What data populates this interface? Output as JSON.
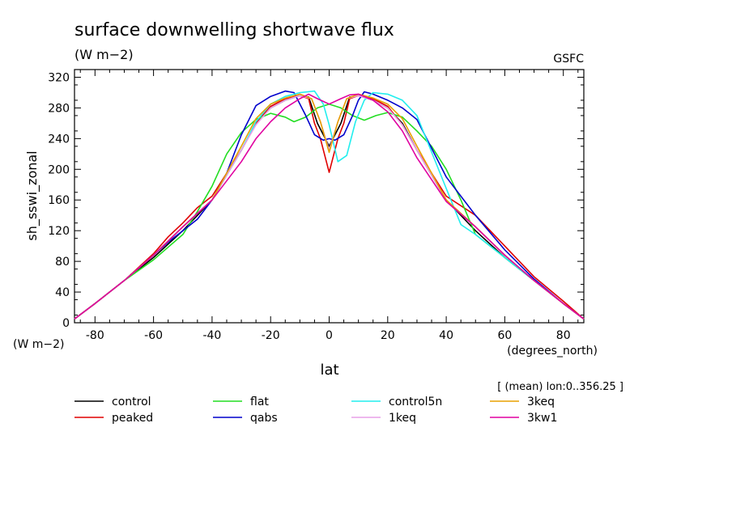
{
  "chart_data": {
    "type": "line",
    "title": "surface downwelling shortwave flux",
    "units_label": "(W m−2)",
    "source": "GSFC",
    "xlabel": "lat",
    "x_units": "(degrees_north)",
    "ylabel": "sh_sswi_zonal",
    "y_units": "(W m−2)",
    "subset_note": "[ (mean) lon:0..356.25 ]",
    "xlim": [
      -87,
      87
    ],
    "ylim": [
      0,
      330
    ],
    "x_ticks": [
      -80,
      -60,
      -40,
      -20,
      0,
      20,
      40,
      60,
      80
    ],
    "y_ticks": [
      0,
      40,
      80,
      120,
      160,
      200,
      240,
      280,
      320
    ],
    "legend_placement": "bottom",
    "series": [
      {
        "name": "control",
        "color": "#000000",
        "x": [
          -87,
          -80,
          -70,
          -60,
          -50,
          -40,
          -30,
          -25,
          -20,
          -15,
          -10,
          -7,
          -4,
          -2,
          0,
          2,
          4,
          7,
          10,
          15,
          20,
          25,
          30,
          40,
          50,
          60,
          70,
          80,
          87
        ],
        "y": [
          5,
          25,
          55,
          85,
          120,
          160,
          225,
          260,
          280,
          290,
          296,
          294,
          260,
          245,
          230,
          245,
          260,
          294,
          296,
          290,
          280,
          260,
          225,
          160,
          120,
          85,
          55,
          25,
          5
        ]
      },
      {
        "name": "peaked",
        "color": "#e00000",
        "x": [
          -87,
          -80,
          -70,
          -60,
          -55,
          -50,
          -45,
          -40,
          -30,
          -25,
          -20,
          -15,
          -10,
          -7,
          -5,
          -3,
          0,
          3,
          5,
          7,
          10,
          15,
          20,
          25,
          30,
          40,
          50,
          60,
          70,
          80,
          87
        ],
        "y": [
          5,
          25,
          55,
          90,
          112,
          130,
          150,
          165,
          225,
          260,
          282,
          292,
          296,
          292,
          260,
          240,
          196,
          240,
          260,
          292,
          296,
          292,
          282,
          258,
          225,
          165,
          140,
          100,
          60,
          28,
          5
        ]
      },
      {
        "name": "flat",
        "color": "#22dd22",
        "x": [
          -87,
          -80,
          -70,
          -60,
          -50,
          -45,
          -40,
          -35,
          -30,
          -25,
          -20,
          -15,
          -12,
          -8,
          -4,
          0,
          4,
          8,
          12,
          16,
          20,
          25,
          30,
          35,
          40,
          45,
          50,
          60,
          70,
          80,
          87
        ],
        "y": [
          5,
          25,
          55,
          82,
          115,
          145,
          178,
          220,
          248,
          265,
          273,
          268,
          262,
          268,
          280,
          285,
          280,
          270,
          264,
          270,
          274,
          268,
          250,
          230,
          200,
          160,
          115,
          85,
          55,
          25,
          5
        ]
      },
      {
        "name": "qabs",
        "color": "#0000cc",
        "x": [
          -87,
          -80,
          -70,
          -60,
          -55,
          -50,
          -45,
          -40,
          -35,
          -30,
          -25,
          -20,
          -15,
          -12,
          -10,
          -8,
          -5,
          -2,
          0,
          2,
          5,
          8,
          10,
          12,
          15,
          20,
          25,
          30,
          40,
          50,
          60,
          70,
          80,
          87
        ],
        "y": [
          5,
          25,
          55,
          88,
          105,
          120,
          135,
          160,
          195,
          245,
          283,
          295,
          302,
          300,
          285,
          270,
          245,
          238,
          240,
          238,
          245,
          270,
          290,
          301,
          298,
          290,
          280,
          265,
          190,
          140,
          95,
          57,
          25,
          5
        ]
      },
      {
        "name": "control5n",
        "color": "#22eeee",
        "x": [
          -87,
          -80,
          -70,
          -60,
          -50,
          -40,
          -30,
          -25,
          -20,
          -15,
          -10,
          -5,
          -2,
          0,
          3,
          6,
          9,
          12,
          15,
          20,
          25,
          30,
          40,
          45,
          50,
          60,
          70,
          80,
          87
        ],
        "y": [
          5,
          25,
          55,
          88,
          125,
          160,
          225,
          262,
          285,
          295,
          300,
          302,
          285,
          258,
          210,
          218,
          262,
          290,
          300,
          298,
          290,
          270,
          175,
          128,
          115,
          85,
          55,
          25,
          5
        ]
      },
      {
        "name": "1keq",
        "color": "#e8a0e8",
        "x": [
          -87,
          -80,
          -70,
          -60,
          -50,
          -40,
          -30,
          -25,
          -20,
          -15,
          -10,
          -6,
          -3,
          0,
          3,
          6,
          10,
          15,
          20,
          25,
          30,
          40,
          50,
          60,
          70,
          80,
          87
        ],
        "y": [
          5,
          25,
          55,
          88,
          125,
          160,
          225,
          258,
          280,
          290,
          296,
          292,
          262,
          225,
          262,
          292,
          296,
          290,
          280,
          258,
          225,
          160,
          125,
          88,
          55,
          25,
          5
        ]
      },
      {
        "name": "3keq",
        "color": "#e8a000",
        "x": [
          -87,
          -80,
          -70,
          -60,
          -50,
          -40,
          -30,
          -25,
          -20,
          -15,
          -10,
          -6,
          -3,
          0,
          3,
          6,
          10,
          15,
          20,
          25,
          30,
          40,
          50,
          60,
          70,
          80,
          87
        ],
        "y": [
          5,
          25,
          55,
          88,
          125,
          160,
          230,
          266,
          285,
          293,
          298,
          292,
          262,
          222,
          262,
          292,
          298,
          293,
          285,
          266,
          230,
          160,
          125,
          88,
          55,
          25,
          5
        ]
      },
      {
        "name": "3kw1",
        "color": "#e000a0",
        "x": [
          -87,
          -80,
          -70,
          -60,
          -50,
          -40,
          -30,
          -25,
          -20,
          -15,
          -10,
          -7,
          -4,
          0,
          4,
          7,
          10,
          15,
          20,
          25,
          30,
          40,
          50,
          60,
          70,
          80,
          87
        ],
        "y": [
          5,
          25,
          55,
          88,
          125,
          160,
          210,
          240,
          262,
          280,
          292,
          298,
          292,
          285,
          292,
          297,
          298,
          290,
          275,
          250,
          215,
          158,
          125,
          88,
          55,
          25,
          5
        ]
      }
    ]
  }
}
